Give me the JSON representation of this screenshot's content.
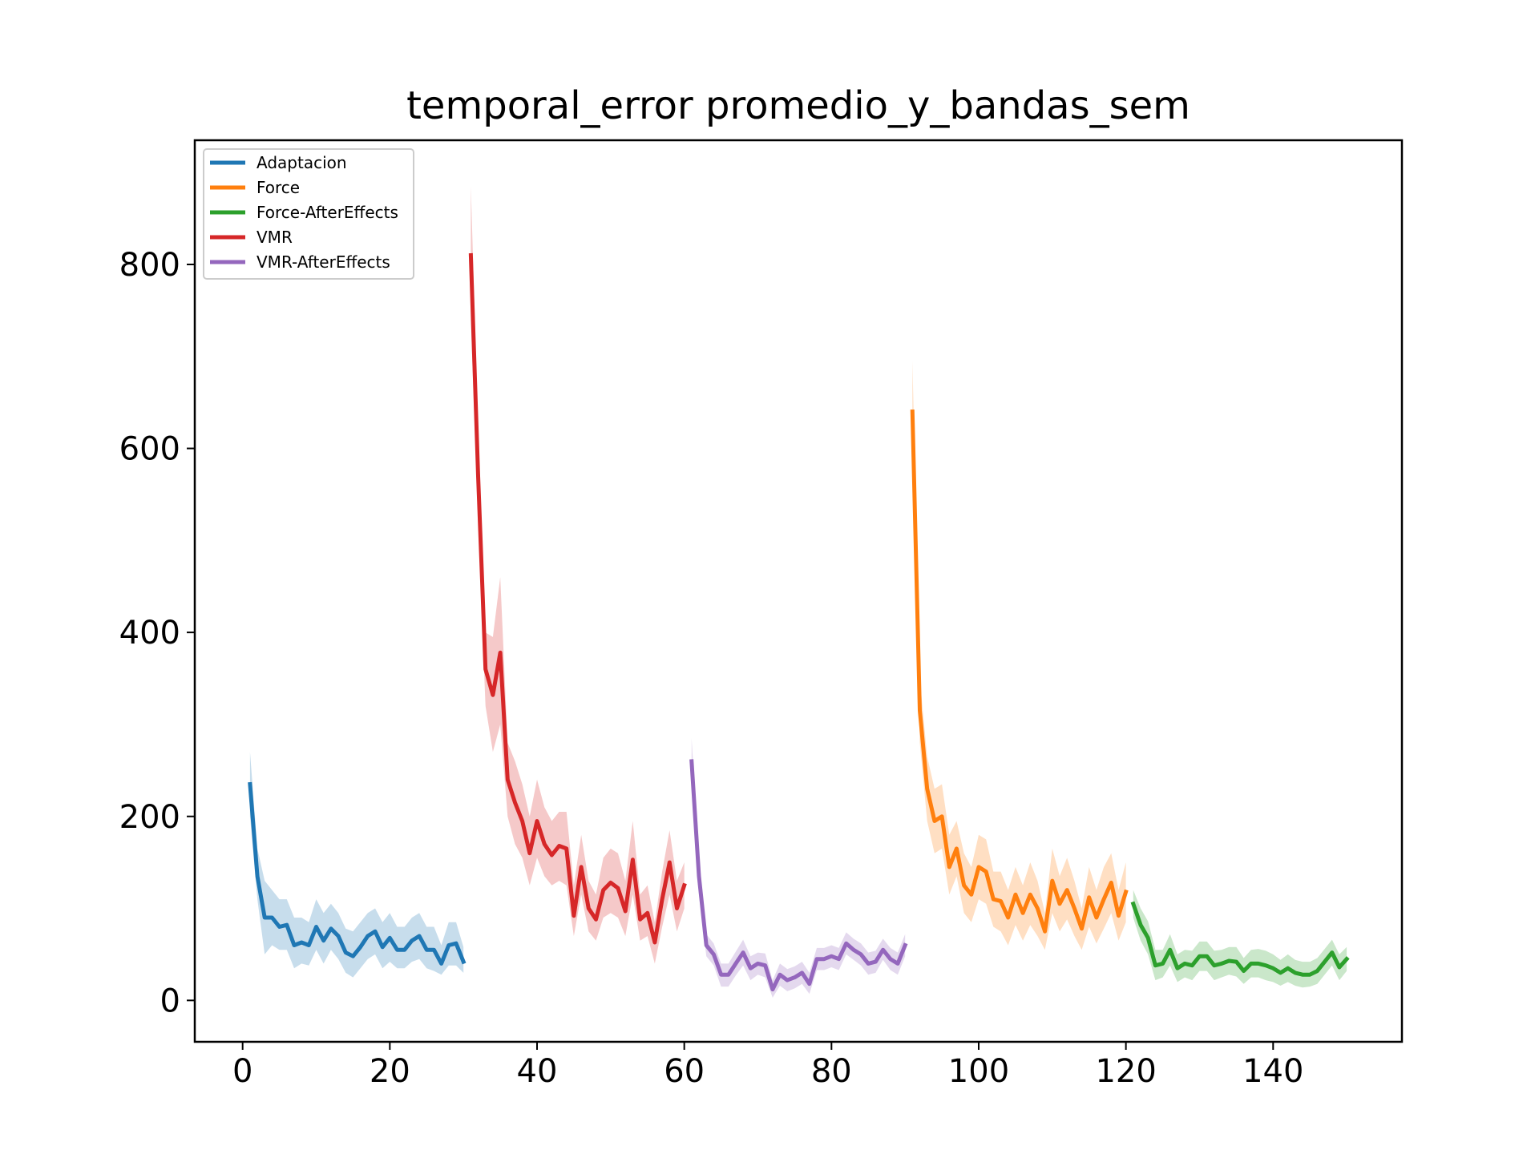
{
  "chart_data": {
    "type": "line",
    "title": "temporal_error promedio_y_bandas_sem",
    "xlabel": "",
    "ylabel": "",
    "xlim": [
      -6.5,
      157.5
    ],
    "ylim": [
      -45,
      935
    ],
    "xticks": [
      0,
      20,
      40,
      60,
      80,
      100,
      120,
      140
    ],
    "yticks": [
      0,
      200,
      400,
      600,
      800
    ],
    "grid": false,
    "legend_position": "upper-left",
    "series": [
      {
        "name": "Adaptacion",
        "color": "#1f77b4",
        "x": [
          1,
          2,
          3,
          4,
          5,
          6,
          7,
          8,
          9,
          10,
          11,
          12,
          13,
          14,
          15,
          16,
          17,
          18,
          19,
          20,
          21,
          22,
          23,
          24,
          25,
          26,
          27,
          28,
          29,
          30
        ],
        "y": [
          235,
          135,
          90,
          90,
          80,
          82,
          60,
          63,
          60,
          80,
          65,
          78,
          70,
          52,
          48,
          58,
          70,
          75,
          58,
          68,
          55,
          55,
          65,
          70,
          55,
          55,
          40,
          60,
          62,
          42
        ],
        "lower": [
          200,
          110,
          50,
          60,
          55,
          55,
          35,
          40,
          38,
          55,
          40,
          55,
          45,
          30,
          25,
          35,
          45,
          50,
          35,
          42,
          35,
          35,
          42,
          45,
          35,
          32,
          28,
          38,
          38,
          30
        ],
        "upper": [
          270,
          165,
          130,
          120,
          110,
          110,
          90,
          90,
          85,
          110,
          95,
          105,
          95,
          78,
          75,
          85,
          95,
          100,
          85,
          95,
          80,
          80,
          90,
          95,
          80,
          80,
          60,
          85,
          85,
          58
        ]
      },
      {
        "name": "Force",
        "color": "#ff7f0e",
        "x": [
          91,
          92,
          93,
          94,
          95,
          96,
          97,
          98,
          99,
          100,
          101,
          102,
          103,
          104,
          105,
          106,
          107,
          108,
          109,
          110,
          111,
          112,
          113,
          114,
          115,
          116,
          117,
          118,
          119,
          120
        ],
        "y": [
          640,
          315,
          230,
          195,
          200,
          145,
          165,
          125,
          115,
          145,
          140,
          110,
          108,
          90,
          115,
          95,
          115,
          100,
          75,
          130,
          105,
          120,
          100,
          78,
          112,
          90,
          110,
          128,
          92,
          118
        ],
        "lower": [
          590,
          280,
          195,
          160,
          165,
          115,
          135,
          95,
          85,
          110,
          105,
          80,
          75,
          60,
          82,
          65,
          82,
          70,
          55,
          95,
          75,
          88,
          70,
          55,
          80,
          62,
          78,
          95,
          65,
          85
        ],
        "upper": [
          695,
          350,
          265,
          230,
          235,
          180,
          195,
          160,
          145,
          180,
          175,
          140,
          140,
          120,
          145,
          125,
          150,
          130,
          95,
          165,
          135,
          155,
          130,
          100,
          145,
          120,
          145,
          160,
          120,
          150
        ]
      },
      {
        "name": "Force-AfterEffects",
        "color": "#2ca02c",
        "x": [
          121,
          122,
          123,
          124,
          125,
          126,
          127,
          128,
          129,
          130,
          131,
          132,
          133,
          134,
          135,
          136,
          137,
          138,
          139,
          140,
          141,
          142,
          143,
          144,
          145,
          146,
          147,
          148,
          149,
          150
        ],
        "y": [
          105,
          82,
          68,
          38,
          40,
          55,
          35,
          40,
          38,
          48,
          48,
          38,
          40,
          43,
          42,
          32,
          40,
          40,
          38,
          35,
          30,
          35,
          30,
          28,
          28,
          32,
          42,
          52,
          36,
          45
        ],
        "lower": [
          90,
          65,
          50,
          22,
          25,
          38,
          20,
          25,
          22,
          32,
          32,
          22,
          25,
          28,
          26,
          18,
          25,
          25,
          22,
          20,
          16,
          20,
          16,
          14,
          15,
          18,
          28,
          38,
          22,
          32
        ],
        "upper": [
          120,
          100,
          86,
          55,
          55,
          72,
          50,
          55,
          54,
          64,
          64,
          54,
          55,
          58,
          58,
          46,
          55,
          56,
          54,
          50,
          44,
          50,
          44,
          42,
          42,
          46,
          56,
          66,
          50,
          58
        ]
      },
      {
        "name": "VMR",
        "color": "#d62728",
        "x": [
          31,
          32,
          33,
          34,
          35,
          36,
          37,
          38,
          39,
          40,
          41,
          42,
          43,
          44,
          45,
          46,
          47,
          48,
          49,
          50,
          51,
          52,
          53,
          54,
          55,
          56,
          57,
          58,
          59,
          60
        ],
        "y": [
          810,
          570,
          360,
          332,
          378,
          240,
          215,
          195,
          160,
          195,
          170,
          158,
          168,
          165,
          92,
          145,
          100,
          88,
          120,
          128,
          122,
          97,
          153,
          88,
          95,
          63,
          110,
          150,
          100,
          125
        ],
        "lower": [
          740,
          520,
          320,
          270,
          300,
          200,
          170,
          155,
          125,
          155,
          135,
          125,
          130,
          125,
          70,
          115,
          75,
          65,
          90,
          95,
          90,
          70,
          115,
          65,
          70,
          40,
          80,
          115,
          75,
          100
        ],
        "upper": [
          885,
          620,
          400,
          395,
          460,
          280,
          260,
          235,
          200,
          240,
          210,
          195,
          205,
          205,
          125,
          180,
          130,
          115,
          155,
          165,
          160,
          130,
          195,
          115,
          125,
          85,
          140,
          185,
          130,
          150
        ]
      },
      {
        "name": "VMR-AfterEffects",
        "color": "#9467bd",
        "x": [
          61,
          62,
          63,
          64,
          65,
          66,
          67,
          68,
          69,
          70,
          71,
          72,
          73,
          74,
          75,
          76,
          77,
          78,
          79,
          80,
          81,
          82,
          83,
          84,
          85,
          86,
          87,
          88,
          89,
          90
        ],
        "y": [
          260,
          135,
          60,
          50,
          28,
          28,
          40,
          52,
          35,
          40,
          38,
          12,
          28,
          22,
          25,
          30,
          18,
          45,
          45,
          48,
          45,
          62,
          55,
          50,
          40,
          42,
          55,
          45,
          40,
          60
        ],
        "lower": [
          235,
          115,
          48,
          38,
          15,
          15,
          27,
          38,
          22,
          28,
          25,
          3,
          16,
          10,
          13,
          18,
          7,
          33,
          33,
          36,
          33,
          50,
          44,
          38,
          28,
          30,
          44,
          33,
          28,
          48
        ],
        "upper": [
          285,
          155,
          72,
          62,
          40,
          40,
          53,
          66,
          48,
          52,
          51,
          22,
          40,
          34,
          37,
          42,
          30,
          57,
          57,
          60,
          57,
          74,
          67,
          62,
          52,
          54,
          67,
          57,
          52,
          72
        ]
      }
    ]
  }
}
